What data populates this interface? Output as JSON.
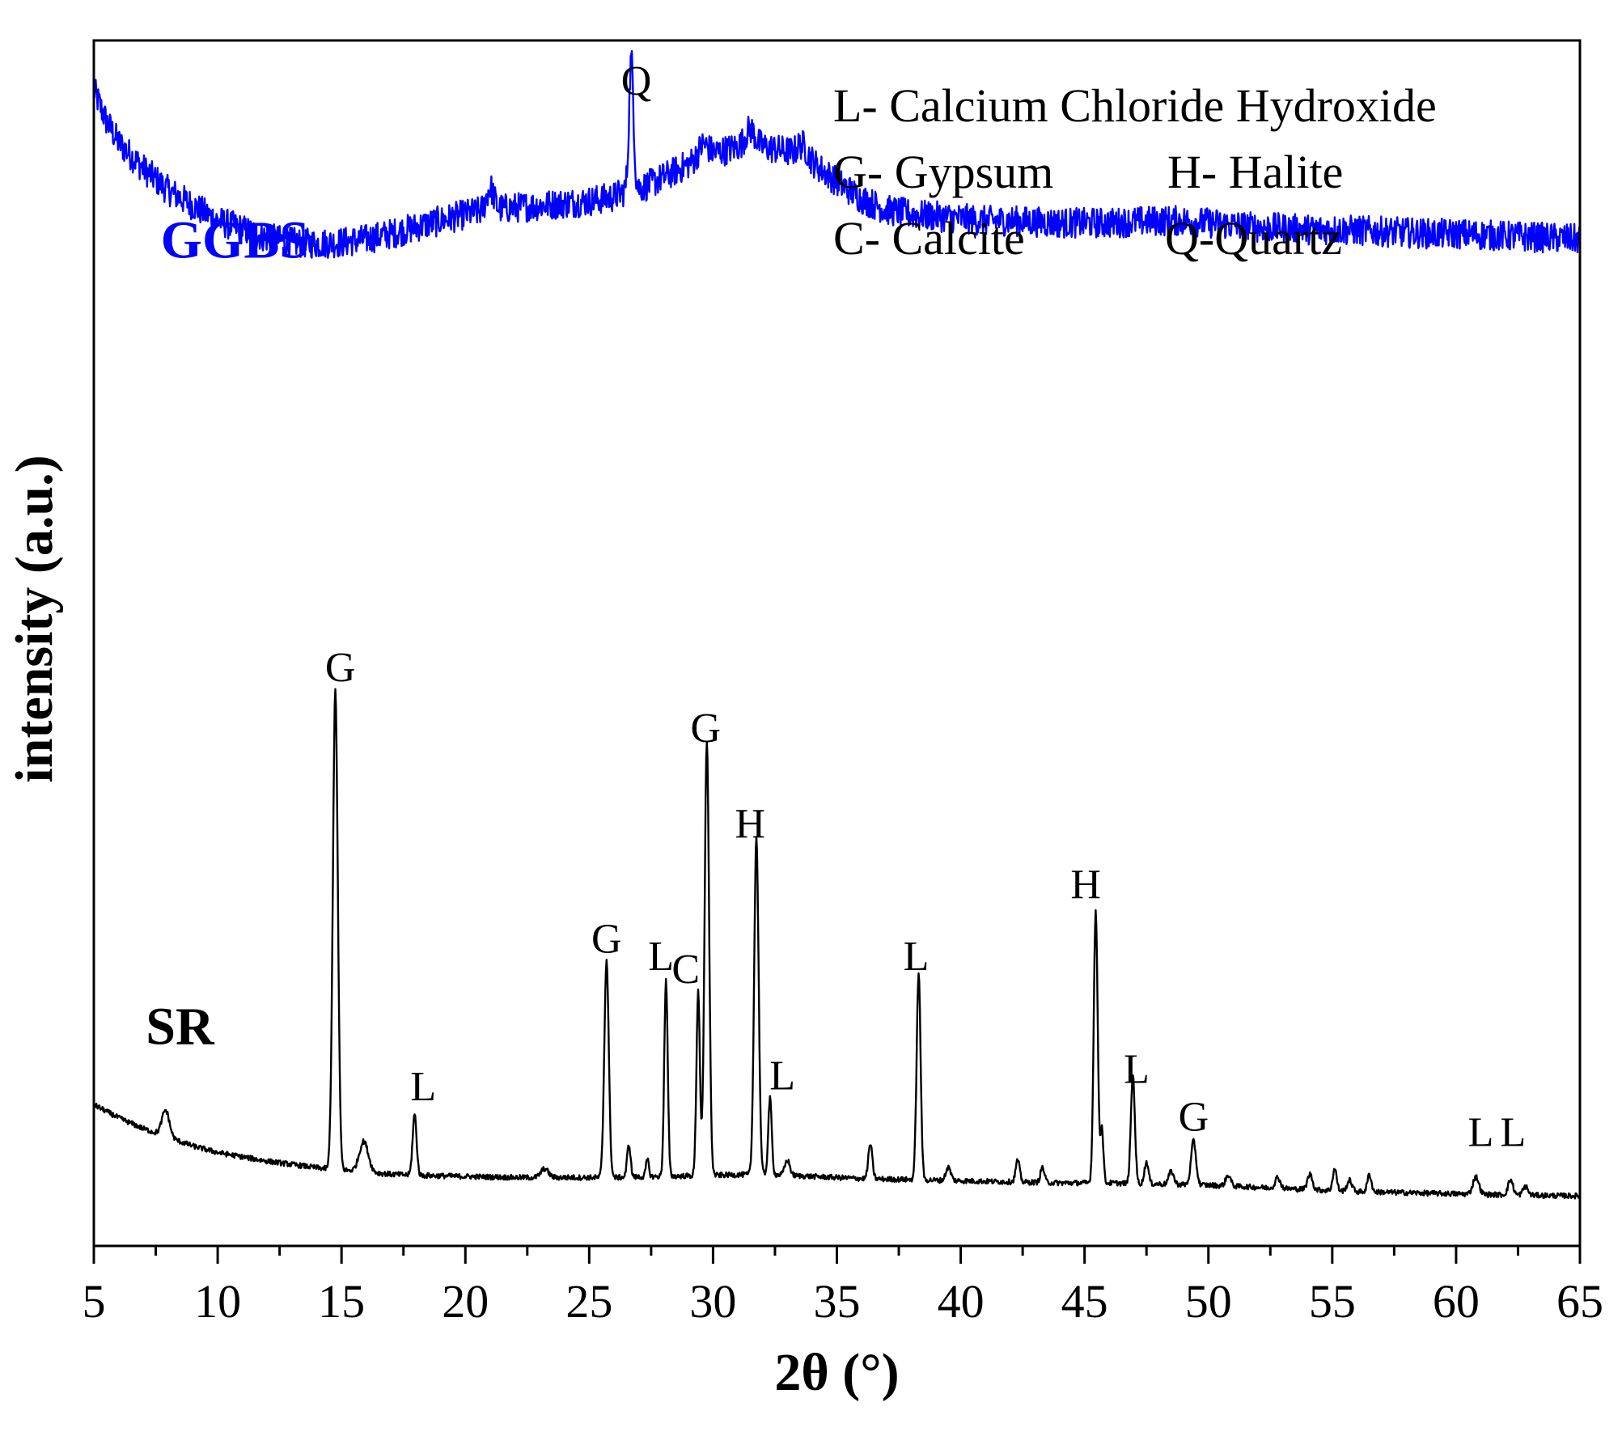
{
  "chart_data": {
    "type": "line",
    "title": "",
    "xlabel": "2θ (°)",
    "ylabel": "intensity (a.u.)",
    "xlim": [
      5,
      65
    ],
    "xticks": [
      5,
      10,
      15,
      20,
      25,
      30,
      35,
      40,
      45,
      50,
      55,
      60,
      65
    ],
    "x_tick_labels": [
      "5",
      "10",
      "15",
      "20",
      "25",
      "30",
      "35",
      "40",
      "45",
      "50",
      "55",
      "60",
      "65"
    ],
    "y_ticks_shown": false,
    "legend_entries": [
      "L- Calcium Chloride Hydroxide",
      "G- Gypsum",
      "H- Halite",
      "C- Calcite",
      "Q-Quartz"
    ],
    "series": [
      {
        "name": "GGBS",
        "color": "#0000ff",
        "noise": 0.07,
        "points": [
          [
            5.0,
            1.02
          ],
          [
            5.5,
            0.88
          ],
          [
            6,
            0.78
          ],
          [
            7,
            0.66
          ],
          [
            8,
            0.56
          ],
          [
            9,
            0.49
          ],
          [
            10,
            0.42
          ],
          [
            11,
            0.38
          ],
          [
            12,
            0.34
          ],
          [
            13,
            0.32
          ],
          [
            14,
            0.315
          ],
          [
            15,
            0.32
          ],
          [
            16,
            0.335
          ],
          [
            17,
            0.36
          ],
          [
            18,
            0.39
          ],
          [
            19,
            0.42
          ],
          [
            20,
            0.45
          ],
          [
            21,
            0.47
          ],
          [
            22,
            0.48
          ],
          [
            23,
            0.49
          ],
          [
            24,
            0.5
          ],
          [
            25,
            0.51
          ],
          [
            26,
            0.53
          ],
          [
            26.5,
            0.56
          ],
          [
            27.3,
            0.58
          ],
          [
            28,
            0.62
          ],
          [
            29,
            0.68
          ],
          [
            30,
            0.73
          ],
          [
            31,
            0.76
          ],
          [
            32,
            0.76
          ],
          [
            33,
            0.74
          ],
          [
            34,
            0.69
          ],
          [
            35,
            0.6
          ],
          [
            36,
            0.52
          ],
          [
            37,
            0.47
          ],
          [
            38,
            0.45
          ],
          [
            39,
            0.44
          ],
          [
            40,
            0.43
          ],
          [
            41,
            0.42
          ],
          [
            42,
            0.42
          ],
          [
            43,
            0.415
          ],
          [
            44,
            0.41
          ],
          [
            45,
            0.41
          ],
          [
            46,
            0.41
          ],
          [
            47,
            0.415
          ],
          [
            48,
            0.42
          ],
          [
            49,
            0.42
          ],
          [
            50,
            0.41
          ],
          [
            51,
            0.4
          ],
          [
            52,
            0.39
          ],
          [
            53,
            0.385
          ],
          [
            54,
            0.38
          ],
          [
            55,
            0.38
          ],
          [
            56,
            0.375
          ],
          [
            57,
            0.37
          ],
          [
            58,
            0.365
          ],
          [
            59,
            0.36
          ],
          [
            60,
            0.36
          ],
          [
            61,
            0.355
          ],
          [
            62,
            0.35
          ],
          [
            63,
            0.345
          ],
          [
            64,
            0.34
          ],
          [
            65,
            0.335
          ]
        ],
        "peaks": [
          [
            26.7,
            0.6,
            0.09
          ],
          [
            21.0,
            0.1,
            0.15
          ],
          [
            31.5,
            0.08,
            0.2
          ],
          [
            33.6,
            0.06,
            0.2
          ],
          [
            29.6,
            0.06,
            0.2
          ]
        ],
        "offset": 4.15
      },
      {
        "name": "SR",
        "color": "#000000",
        "noise": 0.012,
        "points": [
          [
            5.0,
            0.5
          ],
          [
            6,
            0.44
          ],
          [
            7,
            0.39
          ],
          [
            8,
            0.35
          ],
          [
            9,
            0.31
          ],
          [
            10,
            0.28
          ],
          [
            11,
            0.26
          ],
          [
            12,
            0.24
          ],
          [
            13,
            0.225
          ],
          [
            14,
            0.21
          ],
          [
            15,
            0.2
          ],
          [
            16,
            0.19
          ],
          [
            17,
            0.18
          ],
          [
            18,
            0.175
          ],
          [
            20,
            0.17
          ],
          [
            22,
            0.165
          ],
          [
            24,
            0.165
          ],
          [
            26,
            0.165
          ],
          [
            28,
            0.17
          ],
          [
            30,
            0.175
          ],
          [
            32,
            0.18
          ],
          [
            34,
            0.17
          ],
          [
            36,
            0.16
          ],
          [
            38,
            0.155
          ],
          [
            40,
            0.15
          ],
          [
            42,
            0.145
          ],
          [
            44,
            0.14
          ],
          [
            46,
            0.14
          ],
          [
            48,
            0.135
          ],
          [
            50,
            0.13
          ],
          [
            52,
            0.12
          ],
          [
            54,
            0.11
          ],
          [
            56,
            0.1
          ],
          [
            58,
            0.095
          ],
          [
            60,
            0.09
          ],
          [
            62,
            0.085
          ],
          [
            65,
            0.08
          ]
        ],
        "peaks": [
          [
            7.9,
            0.12,
            0.15
          ],
          [
            14.75,
            2.2,
            0.1
          ],
          [
            15.9,
            0.14,
            0.18
          ],
          [
            17.95,
            0.28,
            0.08
          ],
          [
            23.2,
            0.04,
            0.15
          ],
          [
            25.7,
            1.0,
            0.09
          ],
          [
            26.6,
            0.15,
            0.07
          ],
          [
            27.35,
            0.08,
            0.06
          ],
          [
            28.1,
            0.9,
            0.07
          ],
          [
            29.4,
            0.85,
            0.07
          ],
          [
            29.75,
            2.0,
            0.09
          ],
          [
            31.75,
            1.55,
            0.09
          ],
          [
            32.3,
            0.35,
            0.07
          ],
          [
            33.0,
            0.07,
            0.1
          ],
          [
            36.35,
            0.16,
            0.08
          ],
          [
            38.3,
            0.95,
            0.08
          ],
          [
            39.5,
            0.06,
            0.1
          ],
          [
            42.3,
            0.1,
            0.08
          ],
          [
            43.3,
            0.07,
            0.08
          ],
          [
            45.45,
            1.25,
            0.08
          ],
          [
            45.7,
            0.25,
            0.06
          ],
          [
            46.95,
            0.5,
            0.08
          ],
          [
            47.5,
            0.1,
            0.08
          ],
          [
            48.5,
            0.06,
            0.1
          ],
          [
            49.4,
            0.2,
            0.1
          ],
          [
            50.8,
            0.05,
            0.1
          ],
          [
            52.8,
            0.05,
            0.1
          ],
          [
            54.1,
            0.07,
            0.1
          ],
          [
            55.1,
            0.1,
            0.08
          ],
          [
            55.7,
            0.05,
            0.1
          ],
          [
            56.5,
            0.08,
            0.08
          ],
          [
            60.8,
            0.08,
            0.12
          ],
          [
            62.2,
            0.07,
            0.1
          ],
          [
            62.8,
            0.04,
            0.1
          ]
        ],
        "offset": 0
      }
    ],
    "series_labels": [
      {
        "text": "GGBS",
        "color": "#0000ff",
        "x": 7.7,
        "y": 4.4
      },
      {
        "text": "SR",
        "color": "#000000",
        "x": 7.1,
        "y": 0.78
      }
    ],
    "y_data_range": [
      -0.15,
      5.4
    ],
    "peak_annotations": [
      {
        "label": "Q",
        "x": 26.9,
        "y": 5.15
      },
      {
        "label": "G",
        "x": 14.95,
        "y": 2.45
      },
      {
        "label": "L",
        "x": 18.3,
        "y": 0.52
      },
      {
        "label": "G",
        "x": 25.7,
        "y": 1.2
      },
      {
        "label": "L",
        "x": 27.9,
        "y": 1.12
      },
      {
        "label": "C",
        "x": 28.9,
        "y": 1.06
      },
      {
        "label": "G",
        "x": 29.7,
        "y": 2.17
      },
      {
        "label": "H",
        "x": 31.5,
        "y": 1.73
      },
      {
        "label": "L",
        "x": 32.8,
        "y": 0.57
      },
      {
        "label": "L",
        "x": 38.2,
        "y": 1.12
      },
      {
        "label": "H",
        "x": 45.05,
        "y": 1.45
      },
      {
        "label": "L",
        "x": 47.1,
        "y": 0.6
      },
      {
        "label": "G",
        "x": 49.4,
        "y": 0.38
      },
      {
        "label": "L",
        "x": 61.0,
        "y": 0.31
      },
      {
        "label": "L",
        "x": 62.3,
        "y": 0.31
      }
    ]
  }
}
